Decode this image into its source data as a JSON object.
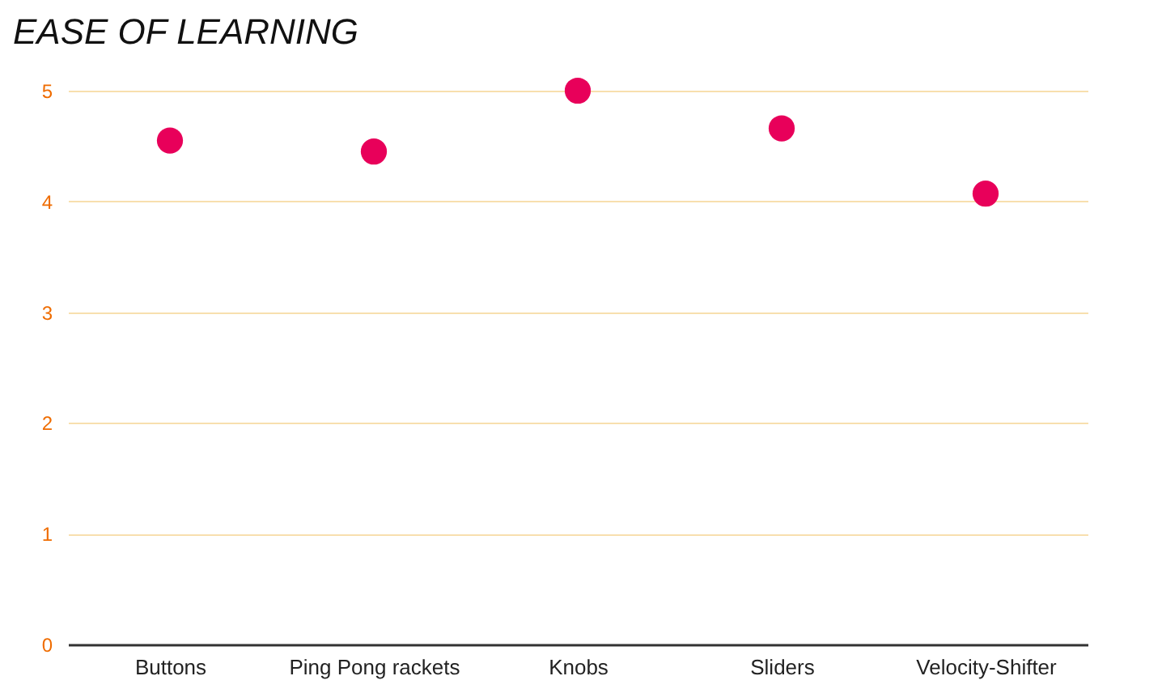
{
  "chart_data": {
    "type": "scatter",
    "title": "EASE OF LEARNING",
    "categories": [
      "Buttons",
      "Ping Pong rackets",
      "Knobs",
      "Sliders",
      "Velocity-Shifter"
    ],
    "series": [
      {
        "color": "#e8005a",
        "values": [
          4.55,
          4.45,
          5,
          4.66,
          4.07
        ]
      }
    ],
    "ylim": [
      0,
      5
    ],
    "yticks": [
      0,
      1,
      2,
      3,
      4,
      5
    ],
    "grid": "y",
    "marker": "circle"
  }
}
